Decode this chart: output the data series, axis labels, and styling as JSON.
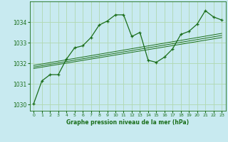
{
  "title": "Graphe pression niveau de la mer (hPa)",
  "background_color": "#c8eaf0",
  "grid_color": "#b0d8b0",
  "line_color": "#1a6e1a",
  "xlim": [
    -0.5,
    23.5
  ],
  "ylim": [
    1029.7,
    1035.0
  ],
  "yticks": [
    1030,
    1031,
    1032,
    1033,
    1034
  ],
  "xticks": [
    0,
    1,
    2,
    3,
    4,
    5,
    6,
    7,
    8,
    9,
    10,
    11,
    12,
    13,
    14,
    15,
    16,
    17,
    18,
    19,
    20,
    21,
    22,
    23
  ],
  "main_x": [
    0,
    1,
    2,
    3,
    4,
    5,
    6,
    7,
    8,
    9,
    10,
    11,
    12,
    13,
    14,
    15,
    16,
    17,
    18,
    19,
    20,
    21,
    22,
    23
  ],
  "main_y": [
    1030.05,
    1031.15,
    1031.45,
    1031.45,
    1032.2,
    1032.75,
    1032.85,
    1033.25,
    1033.85,
    1034.05,
    1034.35,
    1034.35,
    1033.3,
    1033.5,
    1032.15,
    1032.05,
    1032.3,
    1032.7,
    1033.4,
    1033.55,
    1033.9,
    1034.55,
    1034.25,
    1034.1
  ],
  "trend_lines": [
    {
      "x0": 0,
      "y0": 1031.75,
      "x1": 23,
      "y1": 1033.25
    },
    {
      "x0": 0,
      "y0": 1031.82,
      "x1": 23,
      "y1": 1033.35
    },
    {
      "x0": 0,
      "y0": 1031.9,
      "x1": 23,
      "y1": 1033.45
    }
  ]
}
